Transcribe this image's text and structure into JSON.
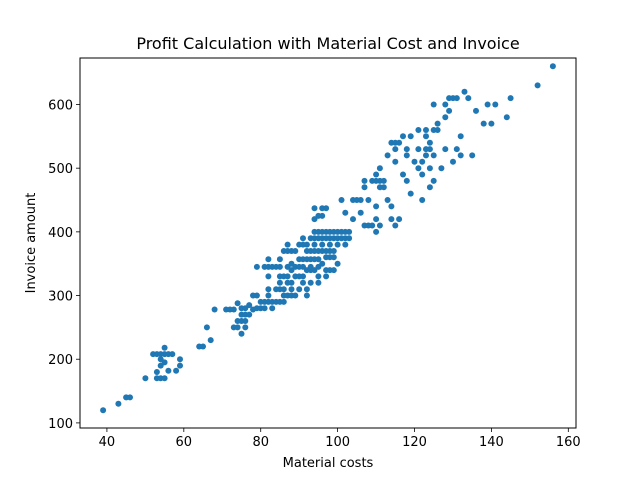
{
  "chart_data": {
    "type": "scatter",
    "title": "Profit Calculation with Material Cost and Invoice",
    "xlabel": "Material costs",
    "ylabel": "Invoice amount",
    "xlim": [
      33,
      162
    ],
    "ylim": [
      92,
      673
    ],
    "xticks": [
      40,
      60,
      80,
      100,
      120,
      140,
      160
    ],
    "yticks": [
      100,
      200,
      300,
      400,
      500,
      600
    ],
    "grid": false,
    "legend": "none",
    "marker_color": "#1f77b4",
    "points": [
      [
        39,
        120
      ],
      [
        43,
        130
      ],
      [
        45,
        140
      ],
      [
        46,
        140
      ],
      [
        50,
        170
      ],
      [
        53,
        170
      ],
      [
        54,
        170
      ],
      [
        55,
        170
      ],
      [
        53,
        180
      ],
      [
        54,
        190
      ],
      [
        55,
        195
      ],
      [
        54,
        200
      ],
      [
        52,
        208
      ],
      [
        53,
        208
      ],
      [
        54,
        208
      ],
      [
        55,
        208
      ],
      [
        56,
        208
      ],
      [
        57,
        208
      ],
      [
        55,
        218
      ],
      [
        56,
        182
      ],
      [
        58,
        182
      ],
      [
        59,
        190
      ],
      [
        59,
        200
      ],
      [
        64,
        220
      ],
      [
        65,
        220
      ],
      [
        66,
        250
      ],
      [
        67,
        230
      ],
      [
        68,
        278
      ],
      [
        71,
        278
      ],
      [
        72,
        278
      ],
      [
        73,
        278
      ],
      [
        74,
        288
      ],
      [
        73,
        250
      ],
      [
        74,
        250
      ],
      [
        74,
        260
      ],
      [
        75,
        240
      ],
      [
        75,
        260
      ],
      [
        75,
        270
      ],
      [
        75,
        280
      ],
      [
        76,
        250
      ],
      [
        76,
        260
      ],
      [
        76,
        270
      ],
      [
        76,
        280
      ],
      [
        77,
        270
      ],
      [
        77,
        285
      ],
      [
        78,
        300
      ],
      [
        78,
        278
      ],
      [
        79,
        300
      ],
      [
        79,
        280
      ],
      [
        79,
        345
      ],
      [
        80,
        290
      ],
      [
        80,
        280
      ],
      [
        81,
        280
      ],
      [
        81,
        290
      ],
      [
        81,
        345
      ],
      [
        82,
        290
      ],
      [
        82,
        300
      ],
      [
        82,
        310
      ],
      [
        82,
        330
      ],
      [
        82,
        345
      ],
      [
        82,
        357
      ],
      [
        83,
        290
      ],
      [
        83,
        280
      ],
      [
        83,
        345
      ],
      [
        84,
        290
      ],
      [
        84,
        310
      ],
      [
        84,
        345
      ],
      [
        85,
        290
      ],
      [
        85,
        310
      ],
      [
        85,
        320
      ],
      [
        85,
        330
      ],
      [
        85,
        345
      ],
      [
        85,
        357
      ],
      [
        86,
        290
      ],
      [
        86,
        300
      ],
      [
        86,
        310
      ],
      [
        86,
        330
      ],
      [
        86,
        370
      ],
      [
        87,
        300
      ],
      [
        87,
        320
      ],
      [
        87,
        330
      ],
      [
        87,
        345
      ],
      [
        87,
        370
      ],
      [
        87,
        380
      ],
      [
        88,
        300
      ],
      [
        88,
        310
      ],
      [
        88,
        320
      ],
      [
        88,
        340
      ],
      [
        88,
        350
      ],
      [
        88,
        370
      ],
      [
        89,
        300
      ],
      [
        89,
        330
      ],
      [
        89,
        345
      ],
      [
        89,
        370
      ],
      [
        90,
        310
      ],
      [
        90,
        330
      ],
      [
        90,
        345
      ],
      [
        90,
        357
      ],
      [
        90,
        380
      ],
      [
        91,
        320
      ],
      [
        91,
        330
      ],
      [
        91,
        345
      ],
      [
        91,
        357
      ],
      [
        91,
        380
      ],
      [
        91,
        390
      ],
      [
        92,
        300
      ],
      [
        92,
        310
      ],
      [
        92,
        340
      ],
      [
        92,
        357
      ],
      [
        92,
        370
      ],
      [
        92,
        380
      ],
      [
        93,
        320
      ],
      [
        93,
        340
      ],
      [
        93,
        345
      ],
      [
        93,
        357
      ],
      [
        93,
        370
      ],
      [
        93,
        390
      ],
      [
        94,
        340
      ],
      [
        94,
        357
      ],
      [
        94,
        370
      ],
      [
        94,
        380
      ],
      [
        94,
        390
      ],
      [
        94,
        400
      ],
      [
        94,
        420
      ],
      [
        94,
        437
      ],
      [
        95,
        320
      ],
      [
        95,
        330
      ],
      [
        95,
        345
      ],
      [
        95,
        357
      ],
      [
        95,
        370
      ],
      [
        95,
        390
      ],
      [
        95,
        400
      ],
      [
        95,
        425
      ],
      [
        96,
        350
      ],
      [
        96,
        370
      ],
      [
        96,
        380
      ],
      [
        96,
        390
      ],
      [
        96,
        400
      ],
      [
        96,
        425
      ],
      [
        96,
        437
      ],
      [
        97,
        330
      ],
      [
        97,
        340
      ],
      [
        97,
        360
      ],
      [
        97,
        370
      ],
      [
        97,
        390
      ],
      [
        97,
        400
      ],
      [
        97,
        437
      ],
      [
        98,
        340
      ],
      [
        98,
        360
      ],
      [
        98,
        370
      ],
      [
        98,
        380
      ],
      [
        98,
        390
      ],
      [
        98,
        400
      ],
      [
        99,
        340
      ],
      [
        99,
        360
      ],
      [
        99,
        370
      ],
      [
        99,
        390
      ],
      [
        99,
        400
      ],
      [
        100,
        350
      ],
      [
        100,
        380
      ],
      [
        100,
        390
      ],
      [
        100,
        400
      ],
      [
        101,
        390
      ],
      [
        101,
        400
      ],
      [
        101,
        450
      ],
      [
        102,
        380
      ],
      [
        102,
        390
      ],
      [
        102,
        400
      ],
      [
        102,
        430
      ],
      [
        103,
        390
      ],
      [
        103,
        400
      ],
      [
        104,
        450
      ],
      [
        104,
        420
      ],
      [
        105,
        450
      ],
      [
        106,
        430
      ],
      [
        106,
        450
      ],
      [
        107,
        410
      ],
      [
        107,
        470
      ],
      [
        107,
        480
      ],
      [
        108,
        410
      ],
      [
        108,
        450
      ],
      [
        109,
        480
      ],
      [
        109,
        410
      ],
      [
        110,
        400
      ],
      [
        110,
        420
      ],
      [
        110,
        440
      ],
      [
        110,
        480
      ],
      [
        110,
        490
      ],
      [
        111,
        410
      ],
      [
        111,
        470
      ],
      [
        111,
        480
      ],
      [
        111,
        500
      ],
      [
        112,
        470
      ],
      [
        112,
        480
      ],
      [
        113,
        450
      ],
      [
        113,
        520
      ],
      [
        114,
        420
      ],
      [
        114,
        440
      ],
      [
        114,
        540
      ],
      [
        115,
        410
      ],
      [
        115,
        510
      ],
      [
        115,
        530
      ],
      [
        115,
        540
      ],
      [
        116,
        420
      ],
      [
        116,
        540
      ],
      [
        117,
        490
      ],
      [
        117,
        550
      ],
      [
        118,
        480
      ],
      [
        118,
        520
      ],
      [
        118,
        530
      ],
      [
        119,
        460
      ],
      [
        119,
        550
      ],
      [
        120,
        510
      ],
      [
        121,
        500
      ],
      [
        121,
        530
      ],
      [
        121,
        560
      ],
      [
        122,
        450
      ],
      [
        122,
        490
      ],
      [
        122,
        510
      ],
      [
        123,
        520
      ],
      [
        123,
        530
      ],
      [
        123,
        550
      ],
      [
        123,
        560
      ],
      [
        124,
        470
      ],
      [
        124,
        500
      ],
      [
        124,
        540
      ],
      [
        124,
        530
      ],
      [
        125,
        480
      ],
      [
        125,
        520
      ],
      [
        125,
        560
      ],
      [
        125,
        600
      ],
      [
        126,
        560
      ],
      [
        126,
        570
      ],
      [
        127,
        500
      ],
      [
        128,
        530
      ],
      [
        128,
        580
      ],
      [
        128,
        600
      ],
      [
        129,
        590
      ],
      [
        129,
        610
      ],
      [
        130,
        510
      ],
      [
        130,
        610
      ],
      [
        131,
        530
      ],
      [
        131,
        610
      ],
      [
        132,
        520
      ],
      [
        132,
        550
      ],
      [
        133,
        620
      ],
      [
        134,
        610
      ],
      [
        135,
        520
      ],
      [
        136,
        590
      ],
      [
        138,
        570
      ],
      [
        139,
        600
      ],
      [
        140,
        570
      ],
      [
        141,
        600
      ],
      [
        144,
        580
      ],
      [
        145,
        610
      ],
      [
        152,
        630
      ],
      [
        156,
        660
      ]
    ]
  }
}
